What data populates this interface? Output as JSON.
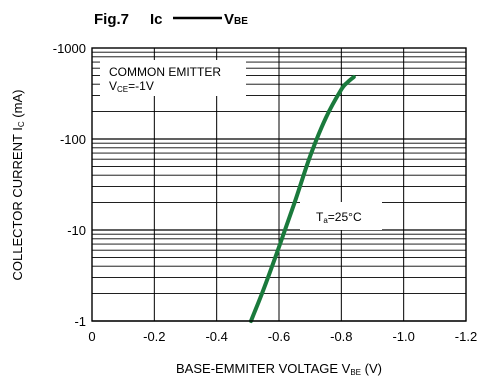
{
  "figure": {
    "number": "Fig.7",
    "title_y_symbol": "Ic",
    "title_x_symbol": "V",
    "title_x_subscript": "BE"
  },
  "chart_data": {
    "type": "line",
    "title": "Ic —— VBE",
    "xlabel": "BASE-EMMITER VOLTAGE VBE (V)",
    "ylabel": "COLLECTOR CURRENT Ic (mA)",
    "x_axis": {
      "range": [
        0,
        -1.2
      ],
      "ticks": [
        0,
        -0.2,
        -0.4,
        -0.6,
        -0.8,
        -1.0,
        -1.2
      ],
      "tick_labels": [
        "0",
        "-0.2",
        "-0.4",
        "-0.6",
        "-0.8",
        "-1.0",
        "-1.2"
      ]
    },
    "y_axis": {
      "scale": "log",
      "range": [
        -1,
        -1000
      ],
      "ticks": [
        -1,
        -10,
        -100,
        -1000
      ],
      "tick_labels": [
        "-1",
        "-10",
        "-100",
        "-1000"
      ]
    },
    "grid": true,
    "grid_color": "#000000",
    "curve_color": "#1a7a3c",
    "series": [
      {
        "name": "Ta=25°C",
        "x": [
          -0.51,
          -0.55,
          -0.6,
          -0.65,
          -0.7,
          -0.75,
          -0.8,
          -0.82,
          -0.84
        ],
        "y": [
          -1,
          -2.2,
          -6.5,
          -20,
          -65,
          -170,
          -350,
          -420,
          -480
        ]
      }
    ],
    "annotations": {
      "box_line1": "COMMON EMITTER",
      "box_line2_main": "V",
      "box_line2_sub": "CE",
      "box_line2_rest": "=-1V",
      "temp_main": "T",
      "temp_sub": "a",
      "temp_rest": "=25°C"
    },
    "ylabel_parts": {
      "main": "COLLECTOR CURRENT I",
      "sub": "C",
      "rest": " (mA)"
    },
    "xlabel_parts": {
      "main": "BASE-EMMITER VOLTAGE V",
      "sub": "BE",
      "rest": " (V)"
    }
  }
}
